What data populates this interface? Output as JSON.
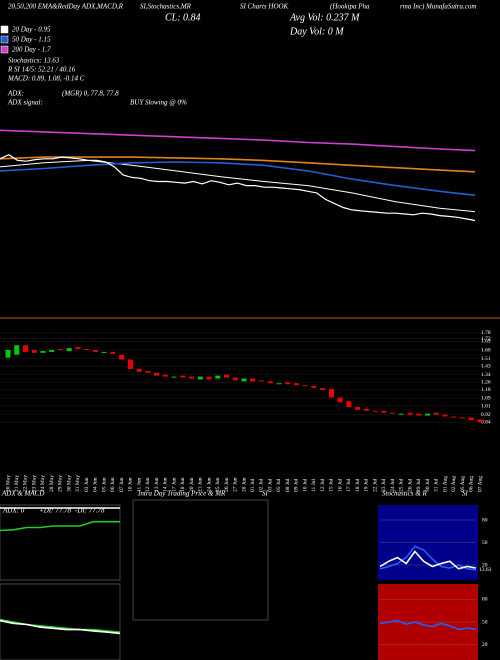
{
  "header": {
    "line1a": "20,50,200 EMA&RedDay ADX,MACD,R",
    "line1b": "SI,Stochastics,MR",
    "line1c": "SI Charts HOOK",
    "line1d": "(Hookipa Pha",
    "line1e": "rma Inc) MunafaSutra.com",
    "close": "CL: 0.84",
    "avg_vol": "Avg Vol: 0.237 M",
    "day_vol": "Day Vol: 0   M",
    "stoch": "Stochastics: 13.63",
    "rsi": "R      SI 14/5: 52.21 / 40.16",
    "macd": "MACD: 0.89, 1.08, -0.14  C",
    "adx": "ADX:",
    "adx_vals": "(MGR) 0, 77.8, 77.8",
    "adx_signal": "ADX  signal:",
    "adx_signal_val": "BUY Slowing @ 0%"
  },
  "chart_data": [
    {
      "type": "line",
      "x": [
        0,
        5,
        10,
        15,
        20,
        25,
        30,
        35,
        40,
        45,
        50,
        54
      ],
      "xlim": [
        0,
        54
      ],
      "ylim": [
        0.6,
        2.2
      ],
      "series": [
        {
          "name": "20 Day - 0.95",
          "color": "#ffffff",
          "values": [
            1.5,
            1.55,
            1.58,
            1.52,
            1.45,
            1.38,
            1.32,
            1.27,
            1.18,
            1.07,
            0.99,
            0.95
          ]
        },
        {
          "name": "50 Day - 1.15",
          "color": "#1f5fd6",
          "values": [
            1.45,
            1.48,
            1.52,
            1.55,
            1.56,
            1.55,
            1.52,
            1.45,
            1.35,
            1.27,
            1.2,
            1.15
          ]
        },
        {
          "name": "200 Day - 1.7",
          "color": "#d040d0",
          "values": [
            1.95,
            1.93,
            1.91,
            1.89,
            1.87,
            1.85,
            1.83,
            1.8,
            1.78,
            1.75,
            1.72,
            1.7
          ]
        },
        {
          "color": "#e08020",
          "values": [
            1.6,
            1.62,
            1.62,
            1.62,
            1.61,
            1.6,
            1.58,
            1.55,
            1.52,
            1.49,
            1.46,
            1.44
          ]
        }
      ]
    },
    {
      "type": "candlestick",
      "categories": [
        "20 May",
        "21 May",
        "22 May",
        "23 May",
        "24 May",
        "28 May",
        "29 May",
        "30 May",
        "31 May",
        "03 Jun",
        "04 Jun",
        "05 Jun",
        "06 Jun",
        "07 Jun",
        "10 Jun",
        "11 Jun",
        "12 Jun",
        "13 Jun",
        "14 Jun",
        "17 Jun",
        "18 Jun",
        "20 Jun",
        "21 Jun",
        "24 Jun",
        "25 Jun",
        "26 Jun",
        "27 Jun",
        "28 Jun",
        "01 Jul",
        "02 Jul",
        "03 Jul",
        "05 Jul",
        "08 Jul",
        "09 Jul",
        "10 Jul",
        "11 Jul",
        "12 Jul",
        "15 Jul",
        "16 Jul",
        "17 Jul",
        "18 Jul",
        "19 Jul",
        "22 Jul",
        "23 Jul",
        "24 Jul",
        "25 Jul",
        "26 Jul",
        "29 Jul",
        "30 Jul",
        "31 Jul",
        "01 Aug",
        "02 Aug",
        "05 Aug",
        "06 Aug",
        "07 Aug"
      ],
      "open": [
        1.52,
        1.55,
        1.65,
        1.6,
        1.57,
        1.58,
        1.61,
        1.59,
        1.63,
        1.61,
        1.6,
        1.57,
        1.58,
        1.55,
        1.5,
        1.4,
        1.38,
        1.36,
        1.34,
        1.31,
        1.33,
        1.32,
        1.29,
        1.32,
        1.3,
        1.34,
        1.31,
        1.27,
        1.3,
        1.28,
        1.27,
        1.24,
        1.26,
        1.25,
        1.23,
        1.22,
        1.2,
        1.19,
        1.1,
        1.06,
        1.0,
        0.98,
        0.96,
        0.96,
        0.94,
        0.92,
        0.94,
        0.93,
        0.91,
        0.94,
        0.92,
        0.9,
        0.89,
        0.89,
        0.87
      ],
      "close": [
        1.6,
        1.65,
        1.58,
        1.57,
        1.59,
        1.6,
        1.6,
        1.62,
        1.61,
        1.6,
        1.58,
        1.58,
        1.56,
        1.5,
        1.4,
        1.37,
        1.36,
        1.33,
        1.32,
        1.32,
        1.31,
        1.3,
        1.32,
        1.29,
        1.33,
        1.31,
        1.28,
        1.3,
        1.27,
        1.27,
        1.25,
        1.25,
        1.24,
        1.23,
        1.22,
        1.2,
        1.18,
        1.1,
        1.05,
        1.0,
        0.97,
        0.96,
        0.95,
        0.94,
        0.93,
        0.93,
        0.92,
        0.91,
        0.93,
        0.92,
        0.9,
        0.89,
        0.88,
        0.86,
        0.84
      ],
      "ylim": [
        0.8,
        1.8
      ],
      "yticks": [
        1.78,
        1.72,
        1.69,
        {
          "value": 1.6,
          "label": "1.60"
        },
        1.51,
        1.43,
        1.34,
        1.26,
        1.18,
        1.09,
        1.01,
        0.92,
        0.84
      ]
    },
    {
      "type": "line",
      "title": "ADX & MACD",
      "labels": [
        "ADX: 0",
        "+DI: 77.78",
        "-DI: 77.78"
      ],
      "x": [
        0,
        1,
        2,
        3,
        4,
        5,
        6,
        7,
        8,
        9
      ],
      "xlim": [
        0,
        9
      ],
      "ylim": [
        0,
        100
      ],
      "series": [
        {
          "color": "#22cc22",
          "values": [
            66,
            67,
            70,
            70,
            72,
            72,
            72,
            77.78,
            77.78,
            77.78
          ]
        },
        {
          "color": "#ffffff",
          "values": [
            96,
            96,
            96,
            96,
            96,
            96,
            96,
            96,
            96,
            96
          ]
        }
      ]
    },
    {
      "type": "line",
      "x": [
        0,
        1,
        2,
        3,
        4,
        5,
        6,
        7,
        8,
        9
      ],
      "xlim": [
        0,
        9
      ],
      "ylim": [
        -0.3,
        0.3
      ],
      "series": [
        {
          "color": "#22cc22",
          "values": [
            0.02,
            0.0,
            -0.02,
            -0.03,
            -0.04,
            -0.05,
            -0.06,
            -0.06,
            -0.07,
            -0.08
          ]
        },
        {
          "color": "#ffffff",
          "values": [
            0.01,
            -0.01,
            -0.02,
            -0.04,
            -0.05,
            -0.06,
            -0.06,
            -0.07,
            -0.08,
            -0.09
          ]
        }
      ]
    },
    {
      "type": "empty",
      "title": "Intra Day Trading Price  & MR",
      "title2": "SI"
    },
    {
      "type": "line",
      "title": "Stochastics & R",
      "title2": "SI",
      "x": [
        0,
        1,
        2,
        3,
        4,
        5,
        6,
        7,
        8,
        9,
        10,
        11
      ],
      "xlim": [
        0,
        11
      ],
      "ylim": [
        0,
        100
      ],
      "yticks": [
        80,
        50,
        20
      ],
      "value_label": "13.63",
      "series": [
        {
          "color": "#2060ff",
          "values": [
            15,
            18,
            22,
            30,
            45,
            40,
            28,
            18,
            16,
            20,
            15,
            13.63
          ]
        },
        {
          "color": "#ffffff",
          "values": [
            18,
            25,
            30,
            22,
            38,
            25,
            18,
            22,
            25,
            15,
            18,
            16
          ]
        }
      ]
    },
    {
      "type": "line",
      "x": [
        0,
        1,
        2,
        3,
        4,
        5,
        6,
        7,
        8,
        9,
        10,
        11
      ],
      "xlim": [
        0,
        11
      ],
      "ylim": [
        0,
        100
      ],
      "yticks": [
        80,
        50,
        20
      ],
      "band": "#b00000",
      "series": [
        {
          "color": "#2060ff",
          "values": [
            48,
            50,
            52,
            47,
            50,
            46,
            44,
            48,
            45,
            40,
            42,
            40.16
          ]
        }
      ]
    }
  ]
}
